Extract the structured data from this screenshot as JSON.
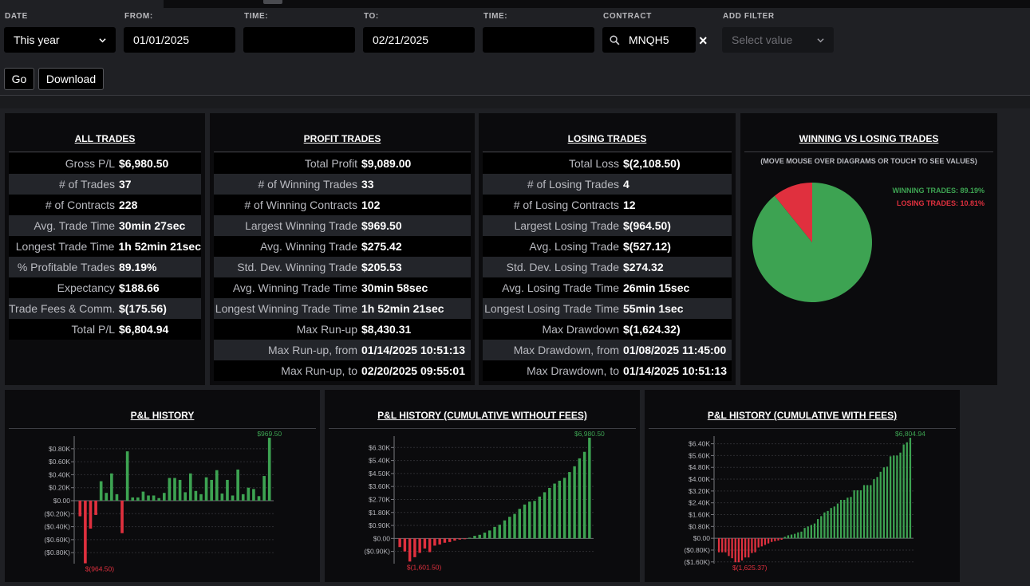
{
  "filters": {
    "date_label": "DATE",
    "date_value": "This year",
    "from_label": "FROM:",
    "from_value": "01/01/2025",
    "time_label": "TIME:",
    "time_from_value": "",
    "to_label": "TO:",
    "to_value": "02/21/2025",
    "time2_label": "TIME:",
    "time_to_value": "",
    "contract_label": "CONTRACT",
    "contract_value": "MNQH5",
    "clear_symbol": "×",
    "add_filter_label": "ADD FILTER",
    "add_filter_placeholder": "Select value",
    "go_label": "Go",
    "download_label": "Download"
  },
  "all_trades": {
    "title": "ALL TRADES",
    "rows": [
      {
        "label": "Gross P/L",
        "value": "$6,980.50"
      },
      {
        "label": "# of Trades",
        "value": "37"
      },
      {
        "label": "# of Contracts",
        "value": "228"
      },
      {
        "label": "Avg. Trade Time",
        "value": "30min 27sec"
      },
      {
        "label": "Longest Trade Time",
        "value": "1h 52min 21sec"
      },
      {
        "label": "% Profitable Trades",
        "value": "89.19%"
      },
      {
        "label": "Expectancy",
        "value": "$188.66"
      },
      {
        "label": "Trade Fees & Comm.",
        "value": "$(175.56)"
      },
      {
        "label": "Total P/L",
        "value": "$6,804.94"
      }
    ]
  },
  "profit_trades": {
    "title": "PROFIT TRADES",
    "rows": [
      {
        "label": "Total Profit",
        "value": "$9,089.00"
      },
      {
        "label": "# of Winning Trades",
        "value": "33"
      },
      {
        "label": "# of Winning Contracts",
        "value": "102"
      },
      {
        "label": "Largest Winning Trade",
        "value": "$969.50"
      },
      {
        "label": "Avg. Winning Trade",
        "value": "$275.42"
      },
      {
        "label": "Std. Dev. Winning Trade",
        "value": "$205.53"
      },
      {
        "label": "Avg. Winning Trade Time",
        "value": "30min 58sec"
      },
      {
        "label": "Longest Winning Trade Time",
        "value": "1h 52min 21sec"
      },
      {
        "label": "Max Run-up",
        "value": "$8,430.31"
      },
      {
        "label": "Max Run-up, from",
        "value": "01/14/2025 10:51:13"
      },
      {
        "label": "Max Run-up, to",
        "value": "02/20/2025 09:55:01"
      }
    ]
  },
  "losing_trades": {
    "title": "LOSING TRADES",
    "rows": [
      {
        "label": "Total Loss",
        "value": "$(2,108.50)"
      },
      {
        "label": "# of Losing Trades",
        "value": "4"
      },
      {
        "label": "# of Losing Contracts",
        "value": "12"
      },
      {
        "label": "Largest Losing Trade",
        "value": "$(964.50)"
      },
      {
        "label": "Avg. Losing Trade",
        "value": "$(527.12)"
      },
      {
        "label": "Std. Dev. Losing Trade",
        "value": "$274.32"
      },
      {
        "label": "Avg. Losing Trade Time",
        "value": "26min 15sec"
      },
      {
        "label": "Longest Losing Trade Time",
        "value": "55min 1sec"
      },
      {
        "label": "Max Drawdown",
        "value": "$(1,624.32)"
      },
      {
        "label": "Max Drawdown, from",
        "value": "01/08/2025 11:45:00"
      },
      {
        "label": "Max Drawdown, to",
        "value": "01/14/2025 10:51:13"
      }
    ]
  },
  "winning_vs_losing": {
    "title": "WINNING VS LOSING TRADES",
    "note": "(MOVE MOUSE OVER DIAGRAMS OR TOUCH TO SEE VALUES)",
    "winning_label": "WINNING TRADES: 89.19%",
    "losing_label": "LOSING TRADES: 10.81%",
    "winning_pct": 89.19,
    "losing_pct": 10.81,
    "colors": {
      "winning": "#3da352",
      "losing": "#e0303e"
    }
  },
  "charts": {
    "pl_title": "P&L HISTORY",
    "cum_title": "P&L HISTORY (CUMULATIVE WITHOUT FEES)",
    "fees_title": "P&L HISTORY (CUMULATIVE WITH FEES)"
  },
  "chart_data": [
    {
      "type": "bar",
      "title": "P&L HISTORY",
      "ylim": [
        -0.97,
        0.97
      ],
      "ticks": [
        {
          "v": 0.8,
          "label": "$0.80K"
        },
        {
          "v": 0.6,
          "label": "$0.60K"
        },
        {
          "v": 0.4,
          "label": "$0.40K"
        },
        {
          "v": 0.2,
          "label": "$0.20K"
        },
        {
          "v": 0.0,
          "label": "$0.00"
        },
        {
          "v": -0.2,
          "label": "($0.20K)"
        },
        {
          "v": -0.4,
          "label": "($0.40K)"
        },
        {
          "v": -0.6,
          "label": "($0.60K)"
        },
        {
          "v": -0.8,
          "label": "($0.80K)"
        }
      ],
      "max_label": "$969.50",
      "min_label": "$(964.50)",
      "values": [
        -0.24,
        -0.9645,
        -0.43,
        -0.22,
        0.3,
        0.12,
        0.42,
        0.1,
        -0.5,
        0.76,
        0.05,
        0.05,
        0.14,
        0.08,
        0.08,
        0.04,
        0.12,
        0.35,
        0.35,
        0.32,
        0.13,
        0.42,
        0.15,
        0.1,
        0.36,
        0.32,
        0.47,
        0.11,
        0.32,
        0.08,
        0.48,
        0.1,
        0.2,
        0.18,
        0.07,
        0.38,
        0.9695
      ]
    },
    {
      "type": "bar",
      "title": "P&L HISTORY (CUMULATIVE WITHOUT FEES)",
      "ylim": [
        -1.75,
        6.98
      ],
      "ticks": [
        {
          "v": 6.3,
          "label": "$6.30K"
        },
        {
          "v": 5.4,
          "label": "$5.40K"
        },
        {
          "v": 4.5,
          "label": "$4.50K"
        },
        {
          "v": 3.6,
          "label": "$3.60K"
        },
        {
          "v": 2.7,
          "label": "$2.70K"
        },
        {
          "v": 1.8,
          "label": "$1.80K"
        },
        {
          "v": 0.9,
          "label": "$0.90K"
        },
        {
          "v": 0.0,
          "label": "$0.00"
        },
        {
          "v": -0.9,
          "label": "($0.90K)"
        }
      ],
      "max_label": "$6,980.50",
      "min_label": "$(1,601.50)",
      "values": [
        -0.6,
        -0.9,
        -1.6015,
        -1.3,
        -1.0,
        -0.7,
        -0.95,
        -0.5,
        -0.42,
        -0.3,
        -0.25,
        -0.15,
        -0.08,
        -0.02,
        0.05,
        0.18,
        0.25,
        0.4,
        0.55,
        0.8,
        0.95,
        1.25,
        1.5,
        1.7,
        2.05,
        2.35,
        2.55,
        2.6,
        2.9,
        3.2,
        3.5,
        3.8,
        4.0,
        4.2,
        4.6,
        5.0,
        5.55,
        6.0,
        6.9805
      ]
    },
    {
      "type": "bar",
      "title": "P&L HISTORY (CUMULATIVE WITH FEES)",
      "ylim": [
        -1.72,
        6.81
      ],
      "ticks": [
        {
          "v": 6.4,
          "label": "$6.40K"
        },
        {
          "v": 5.6,
          "label": "$5.60K"
        },
        {
          "v": 4.8,
          "label": "$4.80K"
        },
        {
          "v": 4.0,
          "label": "$4.00K"
        },
        {
          "v": 3.2,
          "label": "$3.20K"
        },
        {
          "v": 2.4,
          "label": "$2.40K"
        },
        {
          "v": 1.6,
          "label": "$1.60K"
        },
        {
          "v": 0.8,
          "label": "$0.80K"
        },
        {
          "v": 0.0,
          "label": "$0.00"
        },
        {
          "v": -0.8,
          "label": "($0.80K)"
        },
        {
          "v": -1.6,
          "label": "($1.60K)"
        }
      ],
      "max_label": "$6,804.94",
      "min_label": "$(1,625.37)",
      "values": [
        -0.95,
        -0.95,
        -0.95,
        -1.2,
        -1.35,
        -1.6254,
        -1.6254,
        -1.5,
        -1.3,
        -1.3,
        -1.0,
        -0.95,
        -0.62,
        -0.55,
        -0.45,
        -0.35,
        -0.25,
        -0.2,
        -0.15,
        -0.1,
        0.1,
        0.2,
        0.25,
        0.3,
        0.4,
        0.45,
        0.7,
        0.8,
        0.9,
        1.0,
        1.3,
        1.5,
        1.75,
        1.85,
        2.05,
        2.15,
        2.35,
        2.6,
        2.6,
        2.75,
        2.8,
        3.25,
        3.25,
        3.25,
        3.6,
        3.6,
        3.6,
        4.0,
        4.15,
        4.5,
        4.8,
        4.85,
        5.55,
        5.6,
        5.6,
        5.8,
        6.35,
        6.5,
        6.8049
      ]
    }
  ]
}
